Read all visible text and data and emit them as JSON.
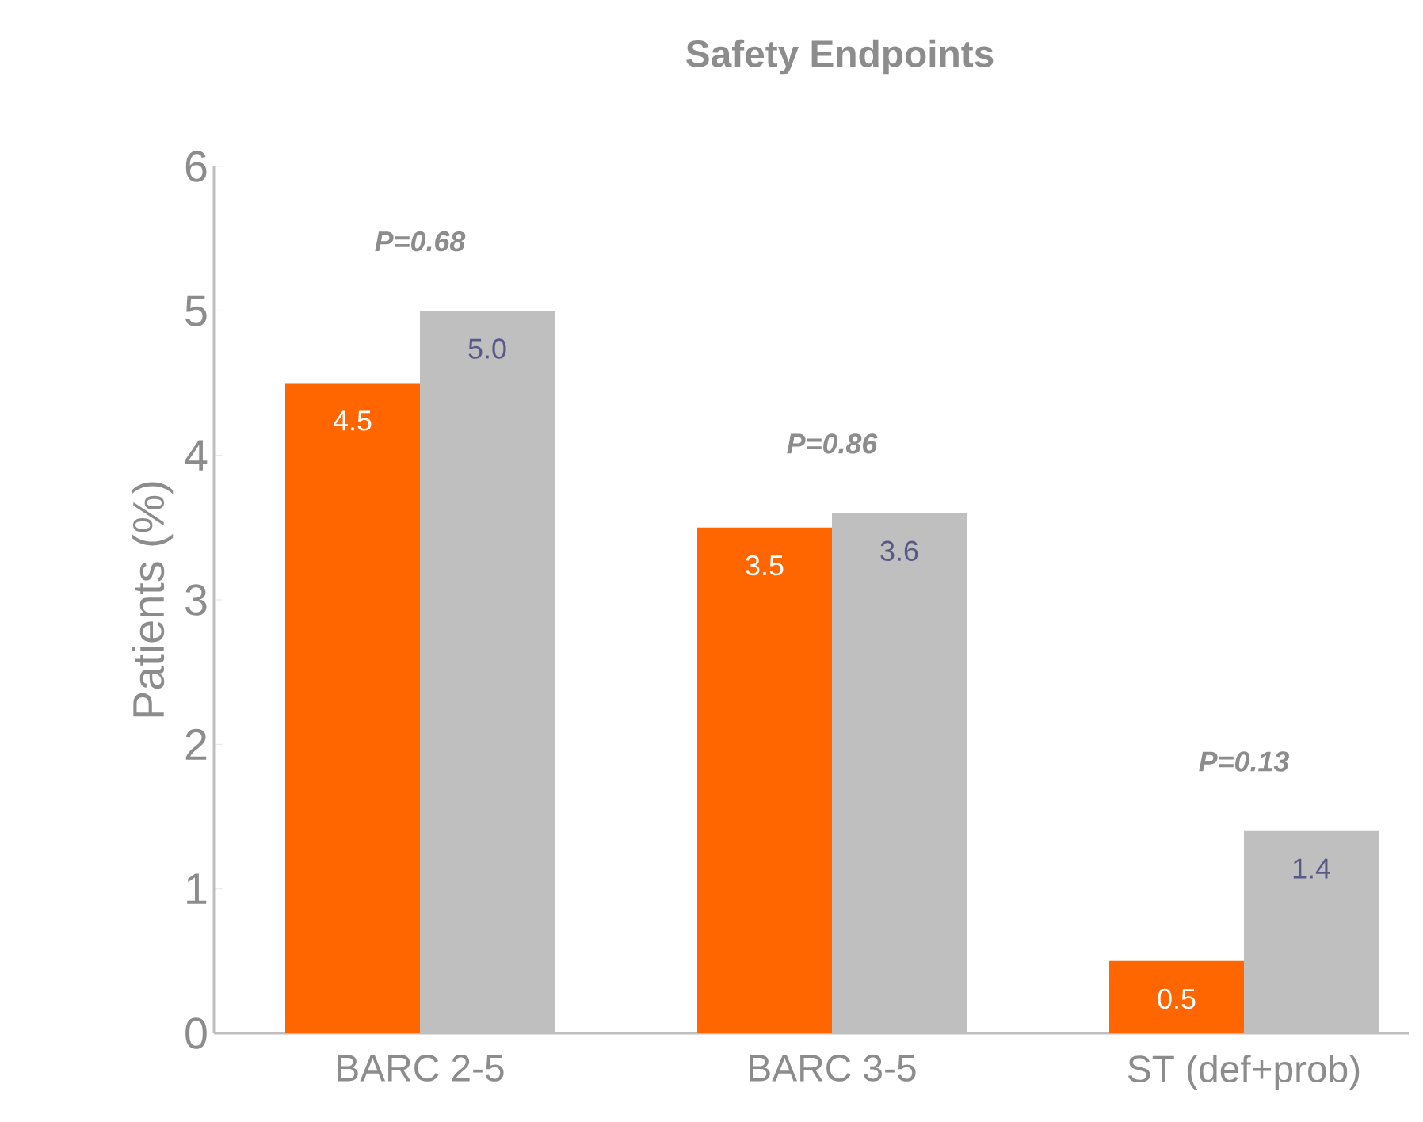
{
  "chart_data": {
    "type": "bar",
    "title": "Safety Endpoints",
    "ylabel": "Patients (%)",
    "categories": [
      "BARC 2-5",
      "BARC 3-5",
      "ST (def+prob)"
    ],
    "series": [
      {
        "color": "#ff6600",
        "values": [
          4.5,
          3.5,
          0.5
        ],
        "value_labels": [
          "4.5",
          "3.5",
          "0.5"
        ]
      },
      {
        "color": "#bfbfbf",
        "values": [
          5.0,
          3.6,
          1.4
        ],
        "value_labels": [
          "5.0",
          "3.6",
          "1.4"
        ]
      }
    ],
    "ylim": [
      0,
      6
    ],
    "yticks": [
      0,
      1,
      2,
      3,
      4,
      5,
      6
    ],
    "grid": false,
    "legend": false,
    "annotations": [
      "P=0.68",
      "P=0.86",
      "P=0.13"
    ]
  }
}
